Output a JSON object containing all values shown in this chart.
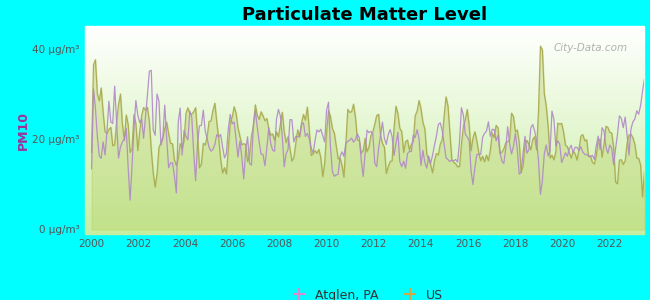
{
  "title": "Particulate Matter Level",
  "ylabel": "PM10",
  "ytick_labels": [
    "0 μg/m³",
    "20 μg/m³",
    "40 μg/m³"
  ],
  "ytick_values": [
    0,
    20,
    40
  ],
  "ylim": [
    -1,
    45
  ],
  "xlim": [
    1999.7,
    2023.5
  ],
  "xticks": [
    2000,
    2002,
    2004,
    2006,
    2008,
    2010,
    2012,
    2014,
    2016,
    2018,
    2020,
    2022
  ],
  "background_color": "#00FFFF",
  "plot_bg_top": "#f5fff5",
  "plot_bg_bottom": "#c8e8a0",
  "atglen_color": "#b088c8",
  "us_color": "#a8a850",
  "us_fill_color": "#c8d870",
  "legend_atglen": "Atglen, PA",
  "legend_us": "US",
  "watermark": "City-Data.com",
  "seed": 12345
}
